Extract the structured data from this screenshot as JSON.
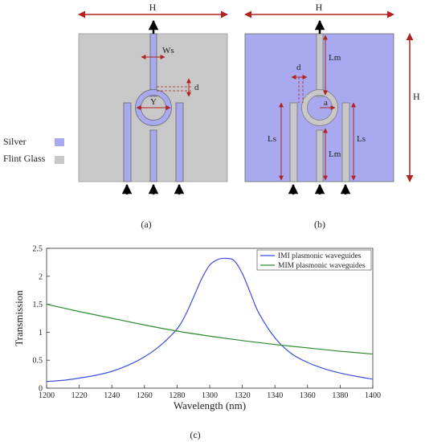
{
  "colors": {
    "silver": "#A9A9F0",
    "flint_glass": "#C8C8C8",
    "dim_arrow": "#B22222",
    "imi_line": "#3E4EDB",
    "mim_line": "#2E8B2E"
  },
  "panel_a": {
    "label": "(a)",
    "dims": {
      "width": "H",
      "stub": "Ws",
      "gap": "d",
      "ring": "Y"
    }
  },
  "panel_b": {
    "label": "(b)",
    "dims": {
      "width": "H",
      "height": "H",
      "stub_top": "Lm",
      "stub_bottom": "Lm",
      "gap": "d",
      "radius": "a",
      "side_left": "Ls",
      "side_right": "Ls"
    }
  },
  "legend_materials": [
    {
      "name": "Silver",
      "color": "#A9A9F0"
    },
    {
      "name": "Flint Glass",
      "color": "#C8C8C8"
    }
  ],
  "panel_c": {
    "label": "(c)"
  },
  "chart_data": {
    "type": "line",
    "title": "",
    "xlabel": "Wavelength (nm)",
    "ylabel": "Transmission",
    "xlim": [
      1200,
      1400
    ],
    "ylim": [
      0,
      2.5
    ],
    "xticks": [
      "1200",
      "1220",
      "1240",
      "1260",
      "1280",
      "1300",
      "1320",
      "1340",
      "1360",
      "1380",
      "1400"
    ],
    "yticks": [
      "0",
      "0.5",
      "1",
      "1.5",
      "2",
      "2.5"
    ],
    "grid": false,
    "legend_position": "top-right",
    "series": [
      {
        "name": "IMI plasmonic waveguides",
        "color": "#3E4EDB",
        "x": [
          1200,
          1210,
          1220,
          1230,
          1240,
          1250,
          1260,
          1270,
          1280,
          1285,
          1290,
          1295,
          1300,
          1305,
          1310,
          1315,
          1320,
          1325,
          1330,
          1340,
          1350,
          1360,
          1370,
          1380,
          1390,
          1400
        ],
        "y": [
          0.12,
          0.14,
          0.18,
          0.23,
          0.3,
          0.41,
          0.56,
          0.77,
          1.06,
          1.3,
          1.62,
          1.95,
          2.2,
          2.3,
          2.32,
          2.28,
          2.05,
          1.7,
          1.35,
          0.9,
          0.62,
          0.46,
          0.35,
          0.27,
          0.21,
          0.16
        ]
      },
      {
        "name": "MIM plasmonic waveguides",
        "color": "#2E8B2E",
        "x": [
          1200,
          1220,
          1240,
          1260,
          1280,
          1300,
          1320,
          1340,
          1360,
          1380,
          1400
        ],
        "y": [
          1.5,
          1.37,
          1.25,
          1.13,
          1.02,
          0.93,
          0.85,
          0.78,
          0.72,
          0.66,
          0.61
        ]
      }
    ]
  }
}
